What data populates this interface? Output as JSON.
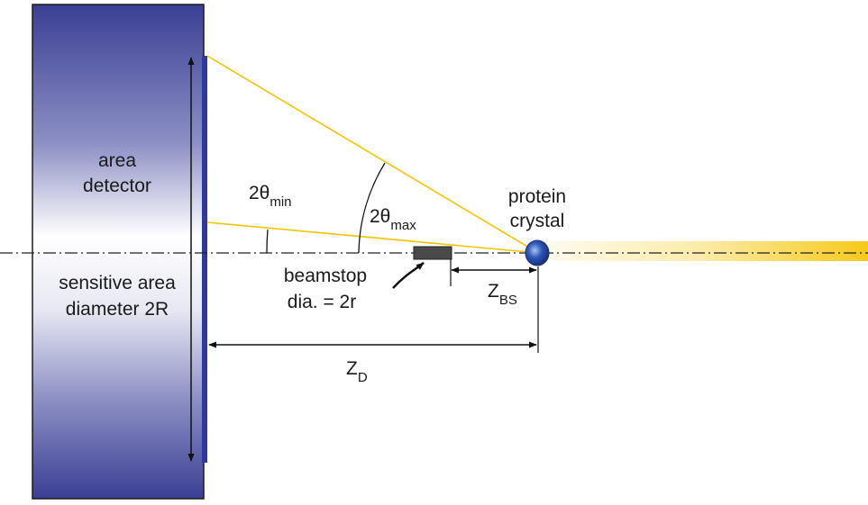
{
  "detector": {
    "title_line1": "area",
    "title_line2": "detector",
    "area_line1": "sensitive area",
    "area_line2": "diameter 2R"
  },
  "angles": {
    "min_main": "2θ",
    "min_sub": "min",
    "max_main": "2θ",
    "max_sub": "max"
  },
  "beamstop": {
    "line1": "beamstop",
    "line2": "dia. = 2r"
  },
  "crystal": {
    "line1": "protein",
    "line2": "crystal"
  },
  "distances": {
    "zbs_main": "Z",
    "zbs_sub": "BS",
    "zd_main": "Z",
    "zd_sub": "D"
  },
  "colors": {
    "detector_dark": "#3b3f94",
    "detector_light": "#ffffff",
    "detector_face": "#2f3aa0",
    "ray": "#f5c400",
    "beam": "#f5c400",
    "crystal": "#2d57b8",
    "beamstop": "#4a4a4a",
    "line": "#111111"
  }
}
